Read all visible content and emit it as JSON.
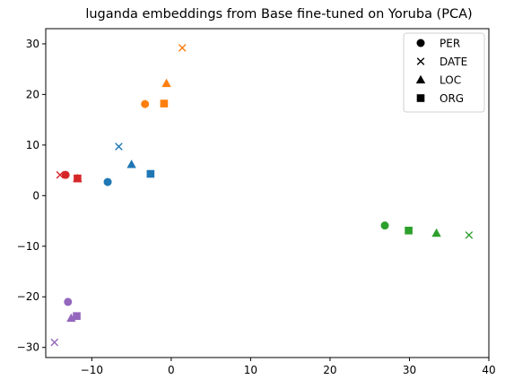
{
  "chart_data": {
    "type": "scatter",
    "title": "luganda embeddings from Base fine-tuned on Yoruba (PCA)",
    "xlabel": "",
    "ylabel": "",
    "xlim": [
      -15.8,
      40
    ],
    "ylim": [
      -32,
      33
    ],
    "xticks": [
      -10,
      0,
      10,
      20,
      30,
      40
    ],
    "yticks": [
      -30,
      -20,
      -10,
      0,
      10,
      20,
      30
    ],
    "grid": false,
    "legend": {
      "placement": "top-right",
      "entries": [
        {
          "label": "PER",
          "marker": "circle"
        },
        {
          "label": "DATE",
          "marker": "x"
        },
        {
          "label": "LOC",
          "marker": "triangle"
        },
        {
          "label": "ORG",
          "marker": "square"
        }
      ]
    },
    "series": [
      {
        "color": "#1f77b4",
        "points": [
          {
            "label": "PER",
            "x": -8.0,
            "y": 2.7
          },
          {
            "label": "DATE",
            "x": -6.6,
            "y": 9.7
          },
          {
            "label": "LOC",
            "x": -5.0,
            "y": 6.2
          },
          {
            "label": "ORG",
            "x": -2.6,
            "y": 4.3
          }
        ]
      },
      {
        "color": "#ff7f0e",
        "points": [
          {
            "label": "PER",
            "x": -3.3,
            "y": 18.1
          },
          {
            "label": "DATE",
            "x": 1.4,
            "y": 29.2
          },
          {
            "label": "LOC",
            "x": -0.6,
            "y": 22.2
          },
          {
            "label": "ORG",
            "x": -0.9,
            "y": 18.2
          }
        ]
      },
      {
        "color": "#2ca02c",
        "points": [
          {
            "label": "PER",
            "x": 26.9,
            "y": -5.9
          },
          {
            "label": "DATE",
            "x": 37.5,
            "y": -7.8
          },
          {
            "label": "LOC",
            "x": 33.4,
            "y": -7.4
          },
          {
            "label": "ORG",
            "x": 29.9,
            "y": -6.9
          }
        ]
      },
      {
        "color": "#d62728",
        "points": [
          {
            "label": "PER",
            "x": -13.3,
            "y": 4.1
          },
          {
            "label": "DATE",
            "x": -14.0,
            "y": 4.1
          },
          {
            "label": "LOC",
            "x": -11.8,
            "y": 3.4
          },
          {
            "label": "ORG",
            "x": -11.8,
            "y": 3.4
          }
        ]
      },
      {
        "color": "#9467bd",
        "points": [
          {
            "label": "PER",
            "x": -13.0,
            "y": -21.0
          },
          {
            "label": "DATE",
            "x": -14.7,
            "y": -29.0
          },
          {
            "label": "LOC",
            "x": -12.6,
            "y": -24.2
          },
          {
            "label": "ORG",
            "x": -11.9,
            "y": -23.8
          }
        ]
      }
    ]
  }
}
